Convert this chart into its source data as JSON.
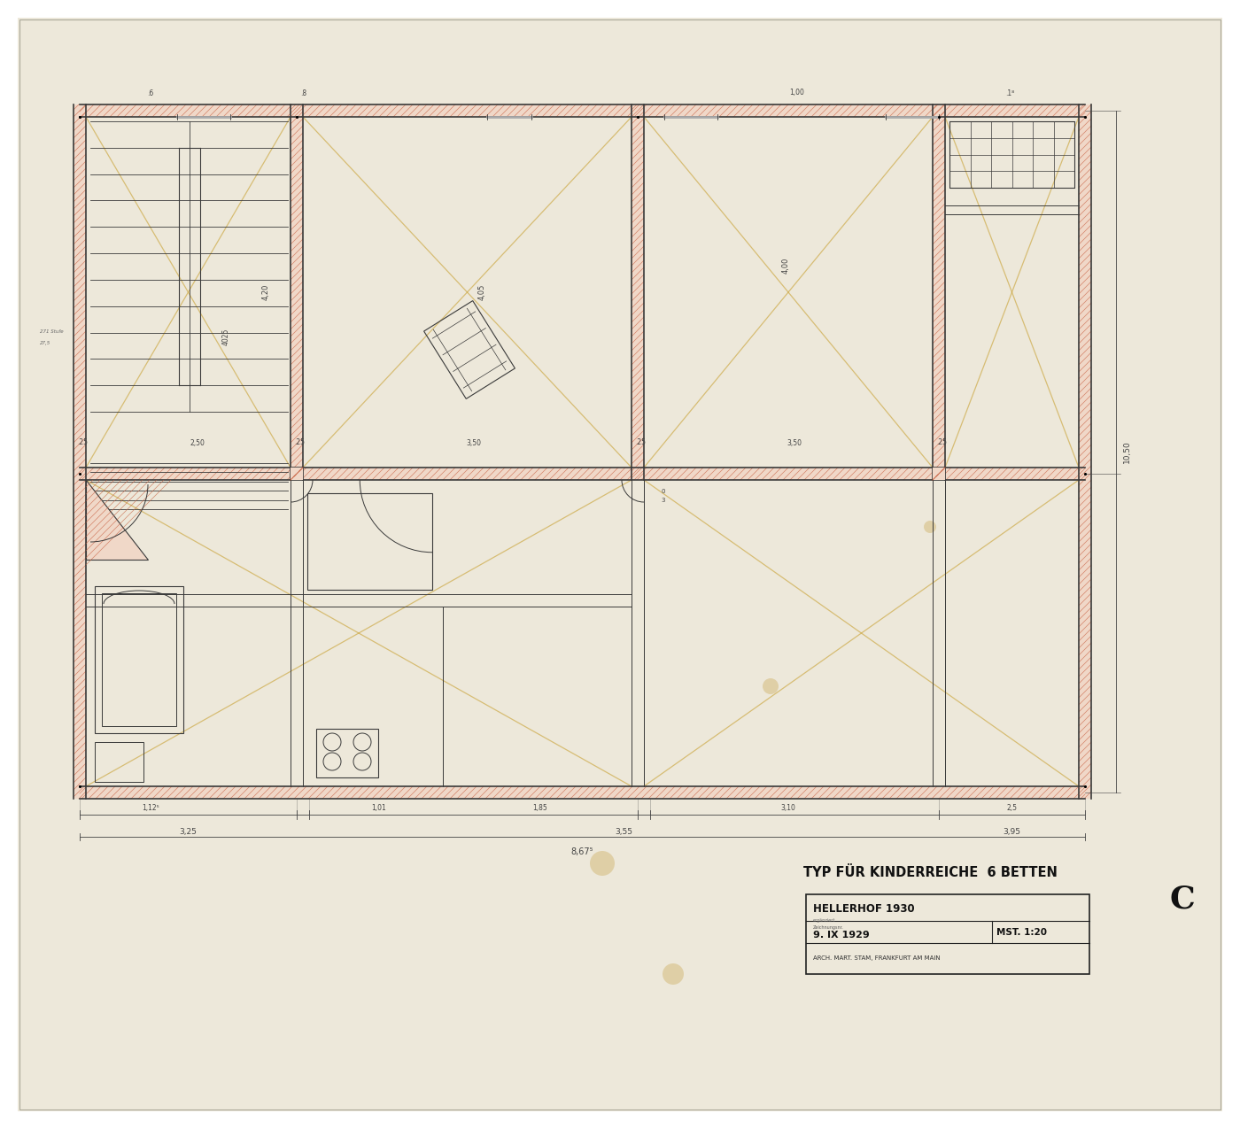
{
  "bg_color": "#f0ebe0",
  "paper_color": "#ede8da",
  "line_color": "#3a3a3a",
  "wall_fill": "#f0d8c8",
  "wall_edge": "#c86040",
  "hatch_color": "#c86040",
  "yellow_color": "#c8a030",
  "dim_color": "#444444",
  "title_color": "#111111",
  "figure_size": [
    14.0,
    12.75
  ],
  "dpi": 100,
  "title1": "TYP FÜR KINDERREICHE  6 BETTEN",
  "title2": "HELLERHOF 1930",
  "title3": "9. IX 1929",
  "title4": "MST. 1:20",
  "title5": "ARCH. MART. STAM, FRANKFURT AM MAIN",
  "letter_c": "C"
}
